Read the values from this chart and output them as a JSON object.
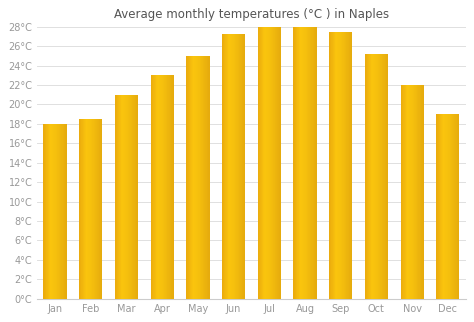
{
  "title": "Average monthly temperatures (°C ) in Naples",
  "months": [
    "Jan",
    "Feb",
    "Mar",
    "Apr",
    "May",
    "Jun",
    "Jul",
    "Aug",
    "Sep",
    "Oct",
    "Nov",
    "Dec"
  ],
  "values": [
    18,
    18.5,
    21,
    23,
    25,
    27.2,
    28,
    28,
    27.5,
    25.2,
    22,
    19
  ],
  "bar_color_main": "#F5A623",
  "bar_color_light": "#FFC84A",
  "bar_color_dark": "#E08800",
  "background_color": "#ffffff",
  "ylim": [
    0,
    28
  ],
  "ytick_step": 2,
  "title_fontsize": 8.5,
  "tick_fontsize": 7,
  "grid_color": "#e0e0e0",
  "spine_color": "#cccccc",
  "text_color": "#999999",
  "title_color": "#555555"
}
